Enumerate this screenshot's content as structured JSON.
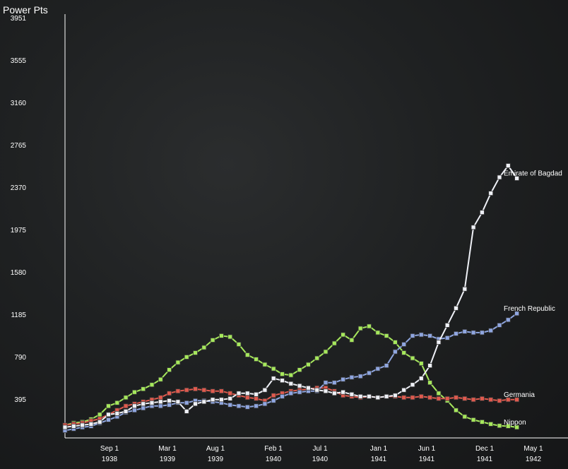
{
  "chart_data": {
    "type": "line",
    "title": "",
    "ylabel": "Power Pts",
    "ylim": [
      0,
      3951
    ],
    "yticks": [
      "3951",
      "3555",
      "3160",
      "2765",
      "2370",
      "1975",
      "1580",
      "1185",
      "790",
      "395"
    ],
    "xticks": [
      {
        "month": "Sep 1",
        "year": "1938"
      },
      {
        "month": "Mar 1",
        "year": "1939"
      },
      {
        "month": "Aug 1",
        "year": "1939"
      },
      {
        "month": "Feb 1",
        "year": "1940"
      },
      {
        "month": "Jul 1",
        "year": "1940"
      },
      {
        "month": "Jan 1",
        "year": "1941"
      },
      {
        "month": "Jun 1",
        "year": "1941"
      },
      {
        "month": "Dec 1",
        "year": "1941"
      },
      {
        "month": "May 1",
        "year": "1942"
      }
    ],
    "series": [
      {
        "name": "Nippon",
        "color": "#a6e85c",
        "values": [
          120,
          140,
          150,
          175,
          220,
          300,
          330,
          380,
          430,
          460,
          500,
          550,
          640,
          710,
          760,
          800,
          850,
          920,
          960,
          950,
          880,
          780,
          740,
          690,
          650,
          600,
          590,
          640,
          690,
          750,
          810,
          890,
          970,
          920,
          1030,
          1050,
          990,
          960,
          900,
          800,
          750,
          700,
          520,
          420,
          350,
          260,
          200,
          170,
          150,
          130,
          115,
          110,
          100
        ]
      },
      {
        "name": "Germania",
        "color": "#e05a4e",
        "values": [
          120,
          130,
          140,
          160,
          180,
          220,
          260,
          300,
          320,
          340,
          360,
          380,
          420,
          440,
          450,
          460,
          450,
          440,
          440,
          420,
          400,
          380,
          370,
          350,
          400,
          420,
          440,
          450,
          460,
          470,
          470,
          440,
          400,
          390,
          380,
          390,
          380,
          390,
          390,
          380,
          380,
          390,
          380,
          370,
          370,
          380,
          370,
          360,
          370,
          360,
          350,
          360,
          360
        ]
      },
      {
        "name": "French Republic",
        "color": "#8fa6e0",
        "values": [
          70,
          85,
          100,
          110,
          140,
          170,
          200,
          240,
          260,
          280,
          300,
          300,
          310,
          330,
          330,
          350,
          350,
          340,
          330,
          310,
          300,
          290,
          300,
          320,
          350,
          390,
          420,
          430,
          440,
          440,
          520,
          520,
          550,
          570,
          580,
          610,
          650,
          680,
          810,
          880,
          960,
          970,
          960,
          930,
          940,
          980,
          1000,
          990,
          990,
          1010,
          1060,
          1110,
          1170
        ]
      },
      {
        "name": "Emirate of Bagdad",
        "color": "#eef0f6",
        "values": [
          100,
          110,
          120,
          130,
          150,
          220,
          230,
          250,
          300,
          320,
          330,
          340,
          350,
          340,
          250,
          320,
          340,
          360,
          360,
          370,
          420,
          420,
          410,
          450,
          560,
          540,
          510,
          490,
          470,
          450,
          440,
          420,
          430,
          410,
          390,
          390,
          380,
          390,
          400,
          450,
          500,
          560,
          680,
          900,
          1060,
          1220,
          1400,
          1980,
          2120,
          2300,
          2450,
          2560,
          2440
        ]
      }
    ]
  }
}
